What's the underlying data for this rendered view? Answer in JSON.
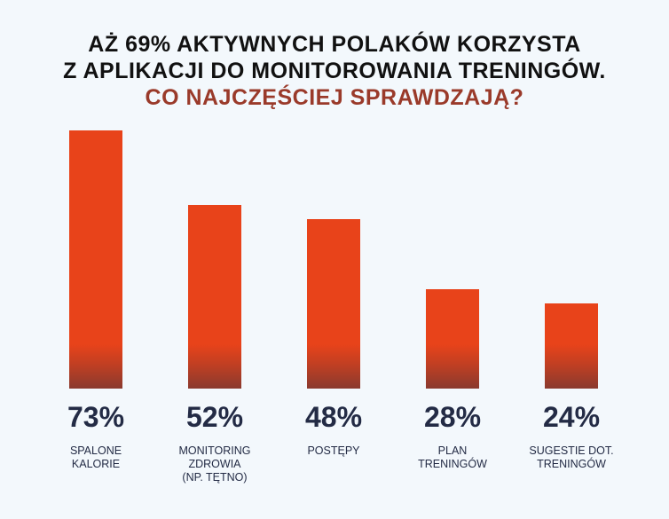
{
  "chart_data": {
    "type": "bar",
    "title_lines": [
      "AŻ 69% AKTYWNYCH POLAKÓW KORZYSTA",
      "Z APLIKACJI DO MONITOROWANIA TRENINGÓW."
    ],
    "subtitle": "CO NAJCZĘŚCIEJ SPRAWDZAJĄ?",
    "categories": [
      "SPALONE\nKALORIE",
      "MONITORING\nZDROWIA\n(NP. TĘTNO)",
      "POSTĘPY",
      "PLAN\nTRENINGÓW",
      "SUGESTIE DOT.\nTRENINGÓW"
    ],
    "values": [
      73,
      52,
      48,
      28,
      24
    ],
    "value_labels": [
      "73%",
      "52%",
      "48%",
      "28%",
      "24%"
    ],
    "xlabel": "",
    "ylabel": "",
    "ylim": [
      0,
      73
    ],
    "colors": {
      "bar": "#e8431a",
      "bar_base": "#8a3a2e",
      "title": "#111111",
      "subtitle": "#9a3a2a",
      "values": "#232b45",
      "background": "#f3f8fc"
    }
  }
}
